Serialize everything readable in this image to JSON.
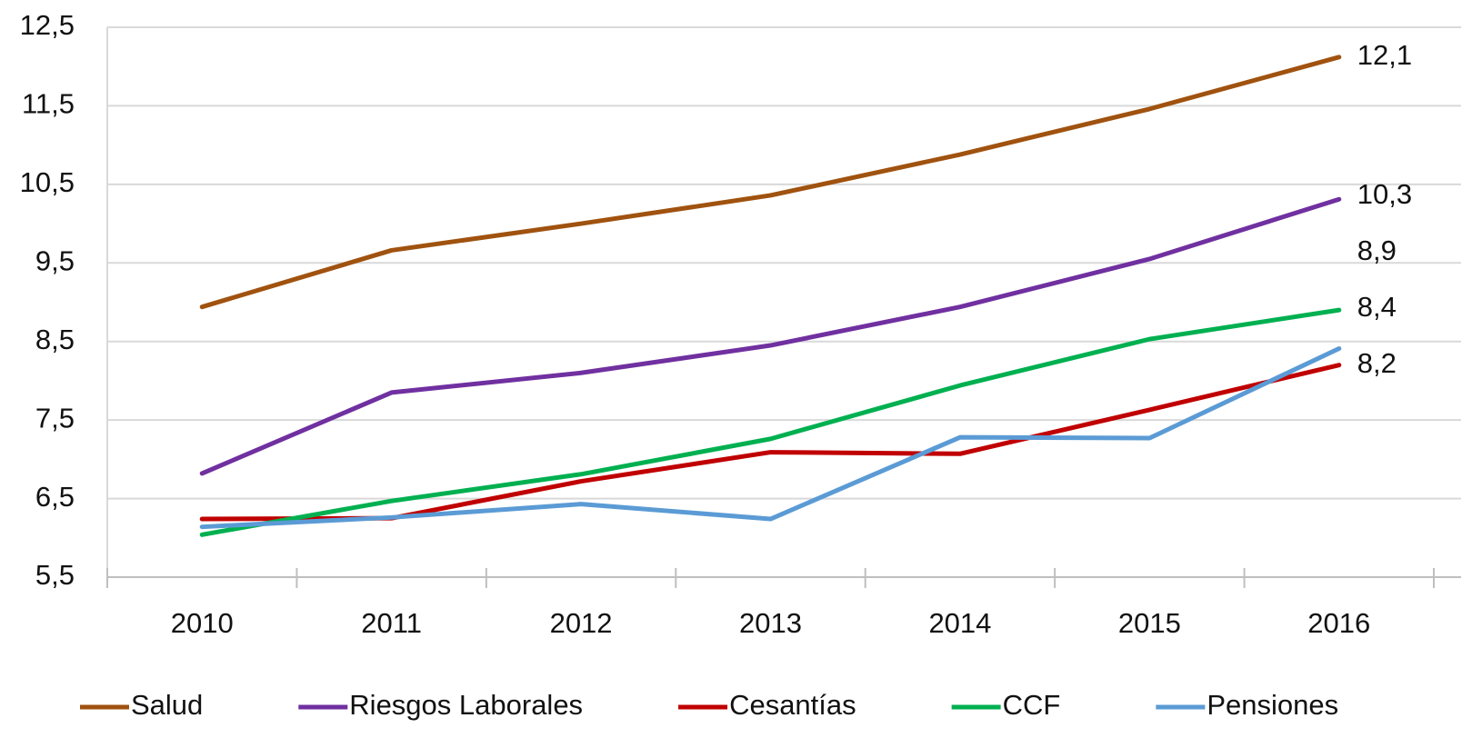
{
  "chart_data": {
    "type": "line",
    "categories": [
      "2010",
      "2011",
      "2012",
      "2013",
      "2014",
      "2015",
      "2016"
    ],
    "series": [
      {
        "name": "Salud",
        "color": "#a0520f",
        "values": [
          8.94,
          9.66,
          10.0,
          10.36,
          10.88,
          11.46,
          12.12
        ],
        "value_labels": [
          null,
          null,
          null,
          null,
          null,
          null,
          "12,1"
        ]
      },
      {
        "name": "Riesgos Laborales",
        "color": "#7030a0",
        "values": [
          6.82,
          7.85,
          8.1,
          8.45,
          8.94,
          9.55,
          10.31
        ],
        "value_labels": [
          null,
          null,
          null,
          null,
          null,
          null,
          "10,3"
        ]
      },
      {
        "name": "Cesantías",
        "color": "#c00000",
        "values": [
          6.24,
          6.25,
          6.72,
          7.09,
          7.07,
          7.63,
          8.2
        ],
        "value_labels": [
          null,
          null,
          null,
          null,
          null,
          null,
          "8,2"
        ]
      },
      {
        "name": "CCF",
        "color": "#00b050",
        "values": [
          6.04,
          6.47,
          6.81,
          7.26,
          7.94,
          8.53,
          8.9
        ],
        "value_labels": [
          null,
          null,
          null,
          null,
          null,
          null,
          "8,9"
        ]
      },
      {
        "name": "Pensiones",
        "color": "#5b9bd5",
        "values": [
          6.14,
          6.26,
          6.43,
          6.24,
          7.28,
          7.27,
          8.41
        ],
        "value_labels": [
          null,
          null,
          null,
          null,
          null,
          null,
          "8,4"
        ]
      }
    ],
    "ylim": [
      5.5,
      12.5
    ],
    "yticks": [
      {
        "value": 5.5,
        "label": "5,5"
      },
      {
        "value": 6.5,
        "label": "6,5"
      },
      {
        "value": 7.5,
        "label": "7,5"
      },
      {
        "value": 8.5,
        "label": "8,5"
      },
      {
        "value": 9.5,
        "label": "9,5"
      },
      {
        "value": 10.5,
        "label": "10,5"
      },
      {
        "value": 11.5,
        "label": "11,5"
      },
      {
        "value": 12.5,
        "label": "12,5"
      }
    ],
    "grid": true,
    "legend": "bottom"
  }
}
